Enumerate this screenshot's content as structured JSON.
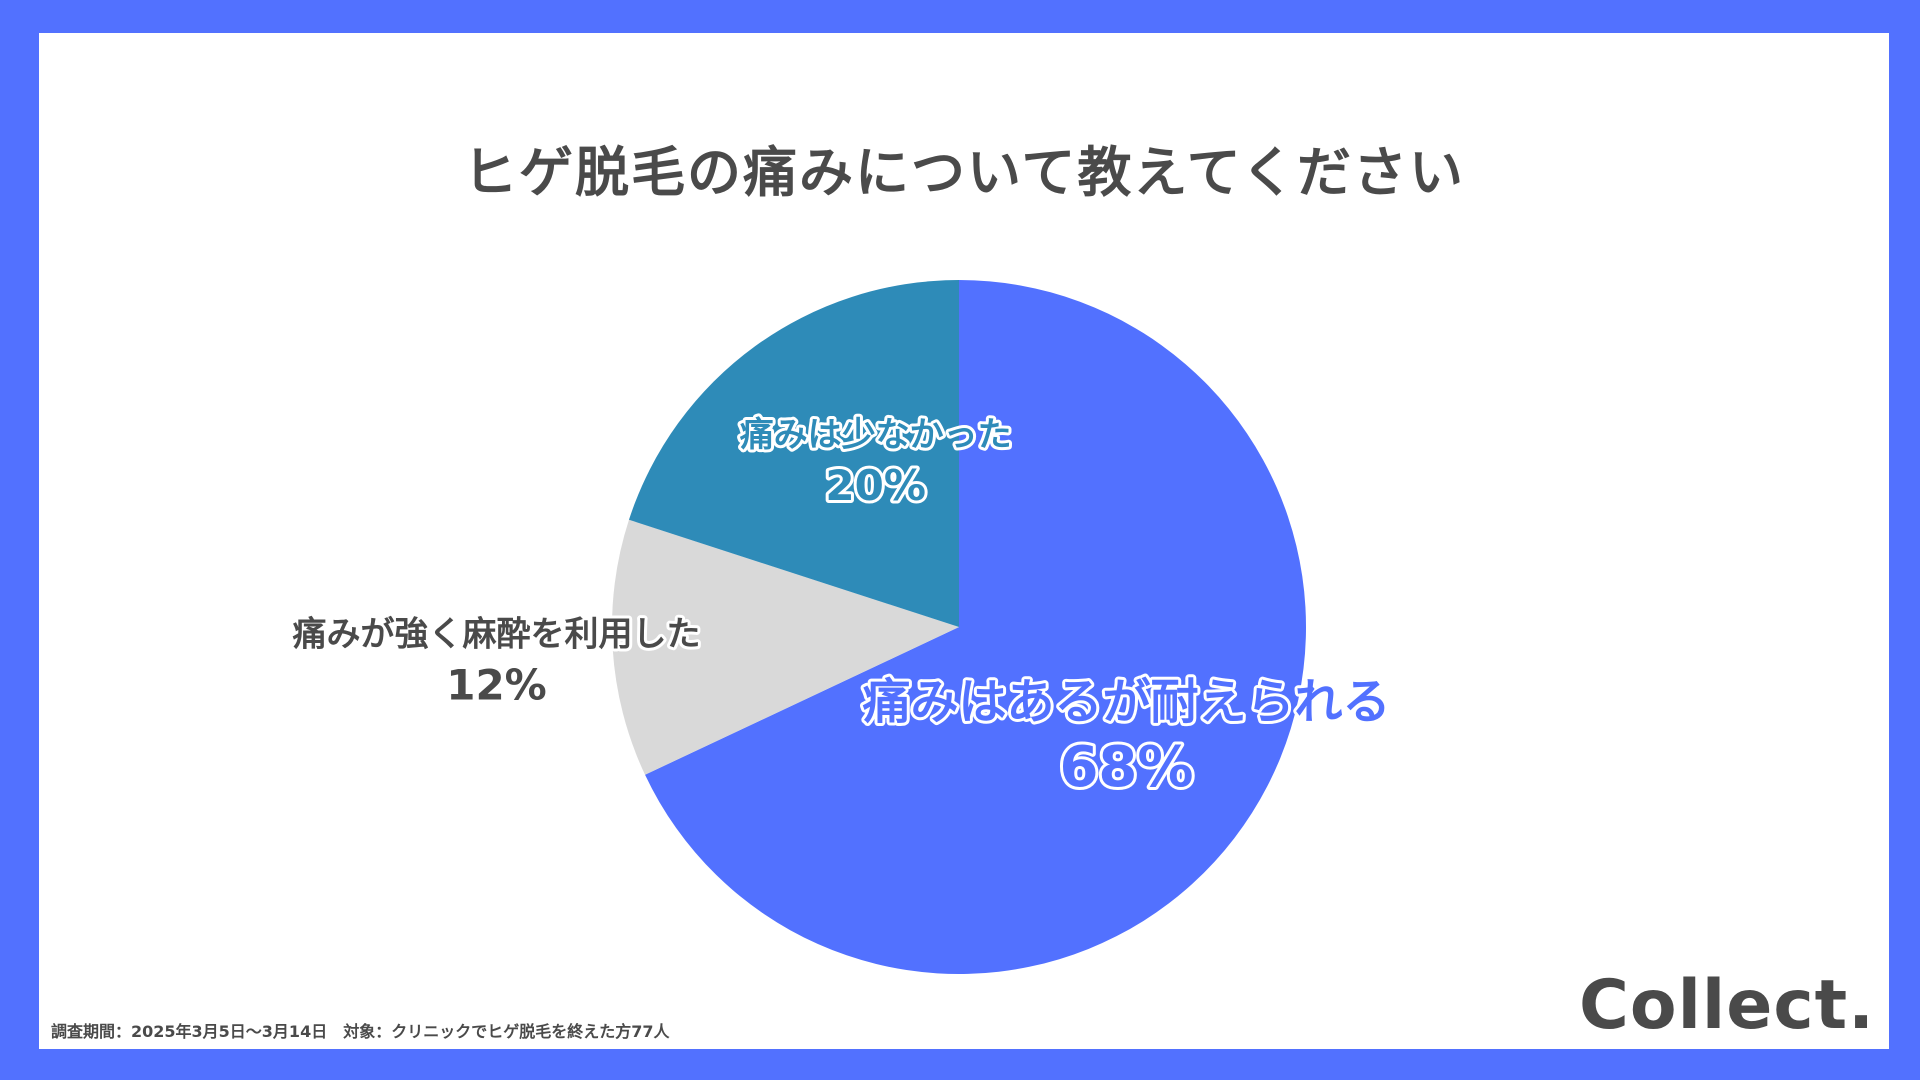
{
  "chart_data": {
    "type": "pie",
    "title": "ヒゲ脱毛の痛みについて教えてください",
    "slices": [
      {
        "label": "痛みはあるが耐えられる",
        "value": 68,
        "display": "68%",
        "color": "#5271ff",
        "label_color": "#5271ff",
        "value_color": "#5271ff"
      },
      {
        "label": "痛みが強く麻酔を利用した",
        "value": 12,
        "display": "12%",
        "color": "#d9d9d9",
        "label_color": "#4a4a4a",
        "value_color": "#4a4a4a"
      },
      {
        "label": "痛みは少なかった",
        "value": 20,
        "display": "20%",
        "color": "#2e8bb8",
        "label_color": "#2e8bb8",
        "value_color": "#2e8bb8"
      }
    ],
    "legend": "none",
    "grid": false
  },
  "footer": {
    "note": "調査期間：2025年3月5日〜3月14日　対象：クリニックでヒゲ脱毛を終えた方77人"
  },
  "brand": {
    "logo_text": "Collect."
  }
}
